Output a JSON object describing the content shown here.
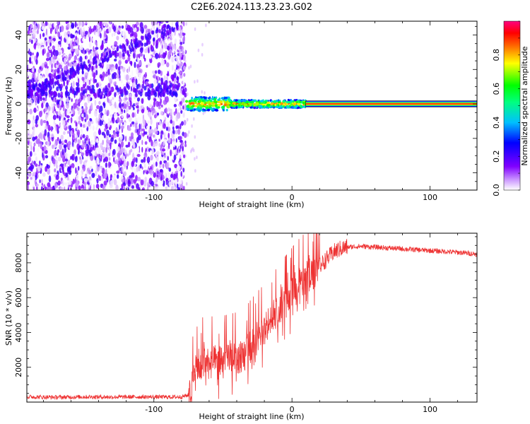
{
  "title": "C2E6.2024.113.23.23.G02",
  "colors": {
    "snr_line": "#ee3333",
    "frame": "#000000",
    "background": "#ffffff"
  },
  "chart_data": [
    {
      "type": "heatmap",
      "title": "C2E6.2024.113.23.23.G02",
      "xlabel": "Height of straight line (km)",
      "ylabel": "Frequency (Hz)",
      "xlim": [
        -192,
        134
      ],
      "ylim": [
        -50,
        48
      ],
      "x_ticks": [
        -100,
        0,
        100
      ],
      "y_ticks": [
        -40,
        -20,
        0,
        20,
        40
      ],
      "grid": false,
      "colorbar": {
        "label": "Normalized spectral amplitude",
        "range": [
          0,
          1
        ],
        "ticks": [
          0.0,
          0.2,
          0.4,
          0.6,
          0.8
        ],
        "colormap": "rainbow (purple-blue-cyan-green-yellow-red-magenta)"
      },
      "regions": [
        {
          "x_range": [
            -192,
            -77
          ],
          "y_range": [
            -50,
            48
          ],
          "description": "broadband scattered noise",
          "amplitude_range": [
            0.0,
            0.2
          ]
        },
        {
          "x_range": [
            -77,
            10
          ],
          "y_range": [
            -4,
            4
          ],
          "description": "fluctuating signal band near 0 Hz",
          "amplitude_range": [
            0.2,
            0.9
          ]
        },
        {
          "x_range": [
            10,
            134
          ],
          "y_range": [
            -1,
            1
          ],
          "description": "steady tone at 0 Hz",
          "amplitude_range": [
            0.9,
            1.0
          ]
        }
      ]
    },
    {
      "type": "line",
      "xlabel": "Height of straight line (km)",
      "ylabel": "SNR (10 * v/v)",
      "xlim": [
        -192,
        134
      ],
      "ylim": [
        0,
        9700
      ],
      "x_ticks": [
        -100,
        0,
        100
      ],
      "y_ticks": [
        2000,
        4000,
        6000,
        8000
      ],
      "grid": false,
      "series": [
        {
          "x": [
            -192,
            -170,
            -150,
            -130,
            -110,
            -90,
            -80,
            -75,
            -70,
            -65,
            -60,
            -55,
            -50,
            -45,
            -40,
            -35,
            -30,
            -25,
            -20,
            -15,
            -10,
            -5,
            0,
            5,
            10,
            15,
            20,
            25,
            30,
            35,
            40,
            50,
            60,
            70,
            80,
            90,
            100,
            110,
            120,
            134
          ],
          "y": [
            300,
            280,
            300,
            290,
            300,
            290,
            300,
            400,
            1500,
            2200,
            2300,
            2200,
            2300,
            2400,
            2500,
            2600,
            3200,
            3700,
            4100,
            4700,
            5100,
            5700,
            6200,
            6700,
            7100,
            7400,
            7800,
            8200,
            8600,
            8800,
            8900,
            8950,
            8900,
            8850,
            8800,
            8750,
            8700,
            8650,
            8600,
            8500
          ]
        }
      ]
    }
  ]
}
